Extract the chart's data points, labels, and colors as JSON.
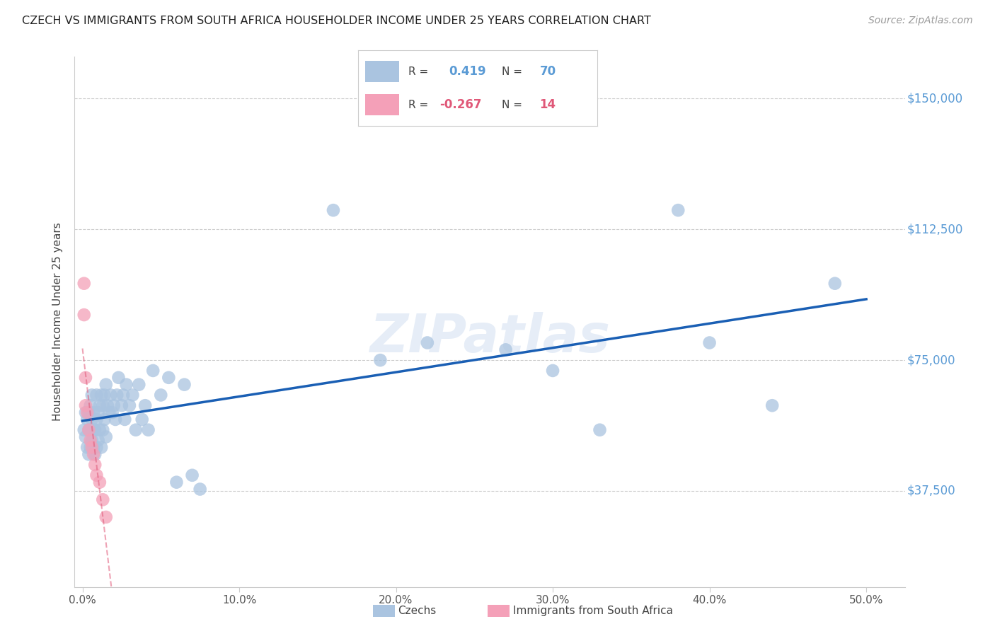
{
  "title": "CZECH VS IMMIGRANTS FROM SOUTH AFRICA HOUSEHOLDER INCOME UNDER 25 YEARS CORRELATION CHART",
  "source": "Source: ZipAtlas.com",
  "ylabel": "Householder Income Under 25 years",
  "xlabel_ticks": [
    "0.0%",
    "10.0%",
    "20.0%",
    "30.0%",
    "40.0%",
    "50.0%"
  ],
  "xlabel_vals": [
    0.0,
    0.1,
    0.2,
    0.3,
    0.4,
    0.5
  ],
  "ylabel_ticks": [
    "$37,500",
    "$75,000",
    "$112,500",
    "$150,000"
  ],
  "ylabel_vals": [
    37500,
    75000,
    112500,
    150000
  ],
  "xlim": [
    -0.005,
    0.525
  ],
  "ylim": [
    10000,
    162000
  ],
  "czech_r": 0.419,
  "czech_n": 70,
  "sa_r": -0.267,
  "sa_n": 14,
  "czech_color": "#aac4e0",
  "sa_color": "#f4a0b8",
  "czech_line_color": "#1a5fb4",
  "sa_line_color": "#e05878",
  "background_color": "#ffffff",
  "grid_color": "#cccccc",
  "czech_x": [
    0.001,
    0.002,
    0.002,
    0.003,
    0.003,
    0.004,
    0.004,
    0.004,
    0.005,
    0.005,
    0.005,
    0.006,
    0.006,
    0.006,
    0.007,
    0.007,
    0.007,
    0.008,
    0.008,
    0.009,
    0.009,
    0.009,
    0.01,
    0.01,
    0.011,
    0.011,
    0.012,
    0.012,
    0.013,
    0.013,
    0.014,
    0.014,
    0.015,
    0.015,
    0.016,
    0.017,
    0.018,
    0.019,
    0.02,
    0.021,
    0.022,
    0.023,
    0.025,
    0.026,
    0.027,
    0.028,
    0.03,
    0.032,
    0.034,
    0.036,
    0.038,
    0.04,
    0.042,
    0.045,
    0.05,
    0.055,
    0.06,
    0.065,
    0.07,
    0.075,
    0.16,
    0.19,
    0.22,
    0.27,
    0.3,
    0.33,
    0.38,
    0.4,
    0.44,
    0.48
  ],
  "czech_y": [
    55000,
    53000,
    60000,
    50000,
    58000,
    48000,
    55000,
    60000,
    50000,
    55000,
    62000,
    52000,
    58000,
    65000,
    50000,
    55000,
    60000,
    48000,
    55000,
    50000,
    58000,
    65000,
    52000,
    60000,
    55000,
    62000,
    50000,
    65000,
    55000,
    62000,
    58000,
    65000,
    53000,
    68000,
    62000,
    60000,
    65000,
    60000,
    62000,
    58000,
    65000,
    70000,
    62000,
    65000,
    58000,
    68000,
    62000,
    65000,
    55000,
    68000,
    58000,
    62000,
    55000,
    72000,
    65000,
    70000,
    40000,
    68000,
    42000,
    38000,
    118000,
    75000,
    80000,
    78000,
    72000,
    55000,
    118000,
    80000,
    62000,
    97000
  ],
  "sa_x": [
    0.001,
    0.001,
    0.002,
    0.002,
    0.003,
    0.004,
    0.005,
    0.006,
    0.007,
    0.008,
    0.009,
    0.011,
    0.013,
    0.015
  ],
  "sa_y": [
    97000,
    88000,
    70000,
    62000,
    60000,
    55000,
    52000,
    50000,
    48000,
    45000,
    42000,
    40000,
    35000,
    30000
  ]
}
